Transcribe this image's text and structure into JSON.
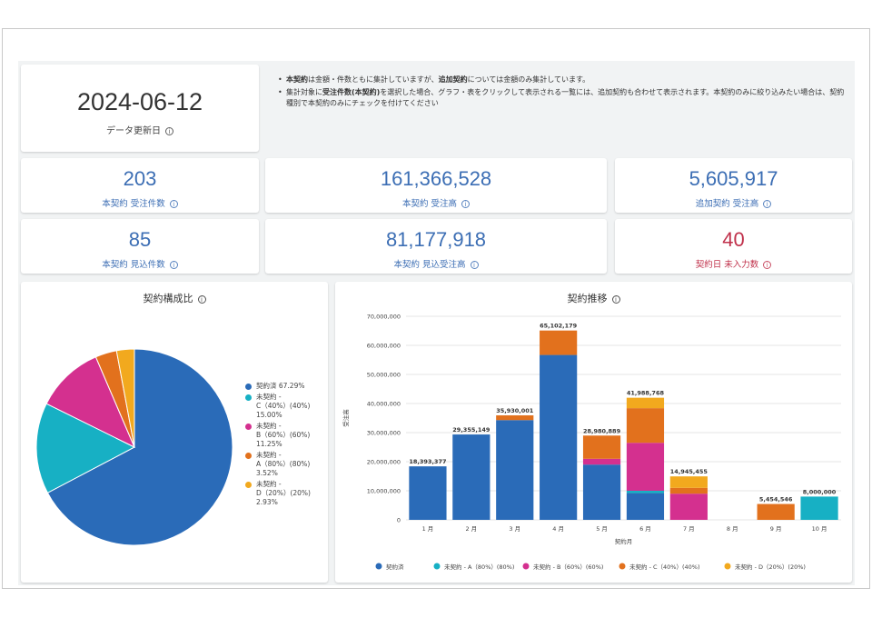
{
  "header": {
    "date_value": "2024-06-12",
    "date_label": "データ更新日",
    "notes": [
      {
        "b1": "本契約",
        "t1": "は金額・件数ともに集計していますが、",
        "b2": "追加契約",
        "t2": "については金額のみ集計しています。"
      },
      {
        "b1": "",
        "t1": "集計対象に",
        "b2": "受注件数(本契約)",
        "t2": "を選択した場合、グラフ・表をクリックして表示される一覧には、追加契約も合わせて表示されます。本契約のみに絞り込みたい場合は、契約種別で本契約のみにチェックを付けてください"
      }
    ]
  },
  "kpis": [
    {
      "value": "203",
      "label": "本契約 受注件数",
      "color": "#3c6eb4"
    },
    {
      "value": "161,366,528",
      "label": "本契約 受注高",
      "color": "#3c6eb4"
    },
    {
      "value": "5,605,917",
      "label": "追加契約 受注高",
      "color": "#3c6eb4"
    },
    {
      "value": "85",
      "label": "本契約 見込件数",
      "color": "#3c6eb4"
    },
    {
      "value": "81,177,918",
      "label": "本契約 見込受注高",
      "color": "#3c6eb4"
    },
    {
      "value": "40",
      "label": "契約日 未入力数",
      "color": "#c0314b"
    }
  ],
  "pie_panel": {
    "title": "契約構成比"
  },
  "bar_panel": {
    "title": "契約推移"
  },
  "chart_data": [
    {
      "type": "pie",
      "title": "契約構成比",
      "slices": [
        {
          "label": "契約済",
          "percent_label": "67.29%",
          "value": 67.29,
          "color": "#2a6bb8"
        },
        {
          "label": "未契約 - C（40%）(40%)",
          "percent_label": "15.00%",
          "value": 15.0,
          "color": "#17b0c4"
        },
        {
          "label": "未契約 - B（60%）(60%)",
          "percent_label": "11.25%",
          "value": 11.25,
          "color": "#d4308f"
        },
        {
          "label": "未契約 - A（80%）(80%)",
          "percent_label": "3.52%",
          "value": 3.52,
          "color": "#e2711d"
        },
        {
          "label": "未契約 - D（20%）(20%)",
          "percent_label": "2.93%",
          "value": 2.93,
          "color": "#f2a91e"
        }
      ],
      "legend_lines": [
        "契約済 67.29%",
        "未契約 -\nC（40%）(40%)\n15.00%",
        "未契約 -\nB（60%）(60%)\n11.25%",
        "未契約 -\nA（80%）(80%)\n3.52%",
        "未契約 -\nD（20%）(20%)\n2.93%"
      ],
      "legend_position": "right"
    },
    {
      "type": "bar",
      "stacked": true,
      "title": "契約推移",
      "xlabel": "契約月",
      "ylabel": "受注高",
      "ylim": [
        0,
        70000000
      ],
      "yticks": [
        0,
        10000000,
        20000000,
        30000000,
        40000000,
        50000000,
        60000000,
        70000000
      ],
      "ytick_labels": [
        "0",
        "10,000,000",
        "20,000,000",
        "30,000,000",
        "40,000,000",
        "50,000,000",
        "60,000,000",
        "70,000,000"
      ],
      "grid": true,
      "categories": [
        "1 月",
        "2 月",
        "3 月",
        "4 月",
        "5 月",
        "6 月",
        "7 月",
        "8 月",
        "9 月",
        "10 月"
      ],
      "totals": [
        "18,393,377",
        "29,355,149",
        "35,930,001",
        "65,102,179",
        "28,980,889",
        "41,988,768",
        "14,945,455",
        "",
        "5,454,546",
        "8,000,000"
      ],
      "series": [
        {
          "name": "契約済",
          "color": "#2a6bb8",
          "values": [
            18393377,
            29355149,
            34300000,
            56700000,
            19000000,
            9200000,
            0,
            0,
            0,
            0
          ]
        },
        {
          "name": "未契約 - A（80%）(80%)",
          "color": "#17b0c4",
          "values": [
            0,
            0,
            0,
            0,
            0,
            800000,
            0,
            0,
            0,
            8000000
          ]
        },
        {
          "name": "未契約 - B（60%）(60%)",
          "color": "#d4308f",
          "values": [
            0,
            0,
            0,
            0,
            2000000,
            16500000,
            9000000,
            0,
            0,
            0
          ]
        },
        {
          "name": "未契約 - C（40%）(40%)",
          "color": "#e2711d",
          "values": [
            0,
            0,
            1630001,
            8402179,
            7980889,
            11900000,
            2000000,
            0,
            5454546,
            0
          ]
        },
        {
          "name": "未契約 - D（20%）(20%)",
          "color": "#f2a91e",
          "values": [
            0,
            0,
            0,
            0,
            0,
            3588768,
            3945455,
            0,
            0,
            0
          ]
        }
      ],
      "legend_position": "bottom"
    }
  ]
}
